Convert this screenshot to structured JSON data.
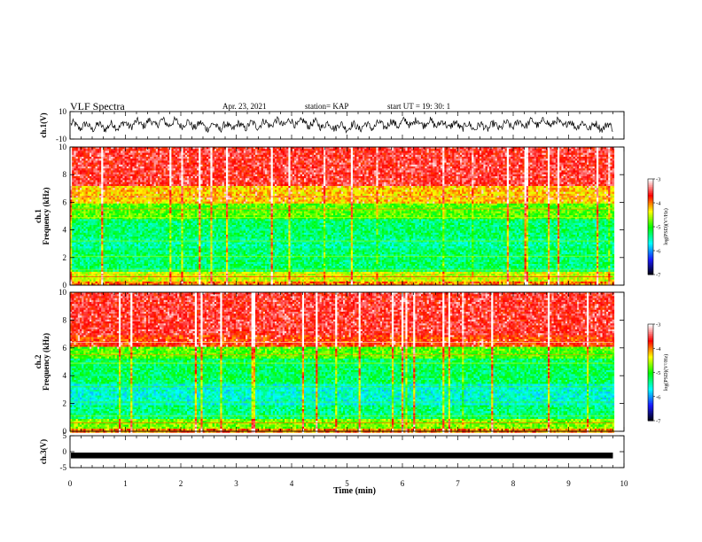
{
  "header": {
    "title": "VLF Spectra",
    "date": "Apr. 23, 2021",
    "station": "station= KAP",
    "start": "start  UT =   19: 30: 1"
  },
  "colors": {
    "background": "#ffffff",
    "trace": "#000000",
    "colormap": [
      "#000000",
      "#1a1aff",
      "#00ffff",
      "#00ff00",
      "#ffff00",
      "#ff0000",
      "#ffffff"
    ]
  },
  "chart_data": [
    {
      "type": "line",
      "id": "ch1",
      "ylabel": "ch.1(V)",
      "ylim": [
        -10,
        10
      ],
      "yticks": [
        10,
        -10
      ],
      "xlim": [
        0,
        10
      ],
      "x_extent": 9.8,
      "level": 0.5,
      "amplitude": 4.5
    },
    {
      "type": "heatmap",
      "id": "spec1",
      "ylabel_channel": "ch.1",
      "ylabel": "Frequency (kHz)",
      "ylim": [
        0,
        10
      ],
      "yticks": [
        0,
        2,
        4,
        6,
        8,
        10
      ],
      "xlim": [
        0,
        10
      ],
      "x_extent": 9.8,
      "colorbar": {
        "label": "log(PSD)(V²/Hz)",
        "range": [
          -7,
          -3
        ],
        "ticks": [
          -3,
          -4,
          -5,
          -6,
          -7
        ]
      },
      "bands": [
        {
          "f": [
            0,
            0.3
          ],
          "level": 0.75
        },
        {
          "f": [
            0.3,
            1.0
          ],
          "level": 0.64
        },
        {
          "f": [
            1.0,
            2.8
          ],
          "level": 0.43
        },
        {
          "f": [
            2.8,
            3.5
          ],
          "level": 0.4
        },
        {
          "f": [
            3.5,
            4.9
          ],
          "level": 0.43
        },
        {
          "f": [
            4.9,
            6.0
          ],
          "level": 0.55
        },
        {
          "f": [
            6.0,
            7.2
          ],
          "level": 0.7
        },
        {
          "f": [
            7.2,
            10
          ],
          "level": 0.86
        }
      ]
    },
    {
      "type": "heatmap",
      "id": "spec2",
      "ylabel_channel": "ch.2",
      "ylabel": "Frequency (kHz)",
      "ylim": [
        0,
        10
      ],
      "yticks": [
        0,
        2,
        4,
        6,
        8,
        10
      ],
      "xlim": [
        0,
        10
      ],
      "x_extent": 9.8,
      "colorbar": {
        "label": "log(PSD)(V²/Hz)",
        "range": [
          -7,
          -3
        ],
        "ticks": [
          -3,
          -4,
          -5,
          -6,
          -7
        ]
      },
      "bands": [
        {
          "f": [
            0,
            0.3
          ],
          "level": 0.75
        },
        {
          "f": [
            0.3,
            0.9
          ],
          "level": 0.58
        },
        {
          "f": [
            0.9,
            2.0
          ],
          "level": 0.42
        },
        {
          "f": [
            2.0,
            3.5
          ],
          "level": 0.36
        },
        {
          "f": [
            3.5,
            5.3
          ],
          "level": 0.44
        },
        {
          "f": [
            5.3,
            6.2
          ],
          "level": 0.55
        },
        {
          "f": [
            6.2,
            7.0
          ],
          "level": 0.8
        },
        {
          "f": [
            7.0,
            10
          ],
          "level": 0.86
        }
      ]
    },
    {
      "type": "line",
      "id": "ch3",
      "ylabel": "ch.3(V)",
      "ylim": [
        -5,
        5
      ],
      "yticks": [
        5,
        0,
        -5
      ],
      "xlim": [
        0,
        10
      ],
      "x_extent": 9.8,
      "level": -1.2,
      "amplitude": 0.35
    }
  ],
  "xaxis": {
    "label": "Time (min)",
    "ticks": [
      0,
      1,
      2,
      3,
      4,
      5,
      6,
      7,
      8,
      9,
      10
    ]
  }
}
